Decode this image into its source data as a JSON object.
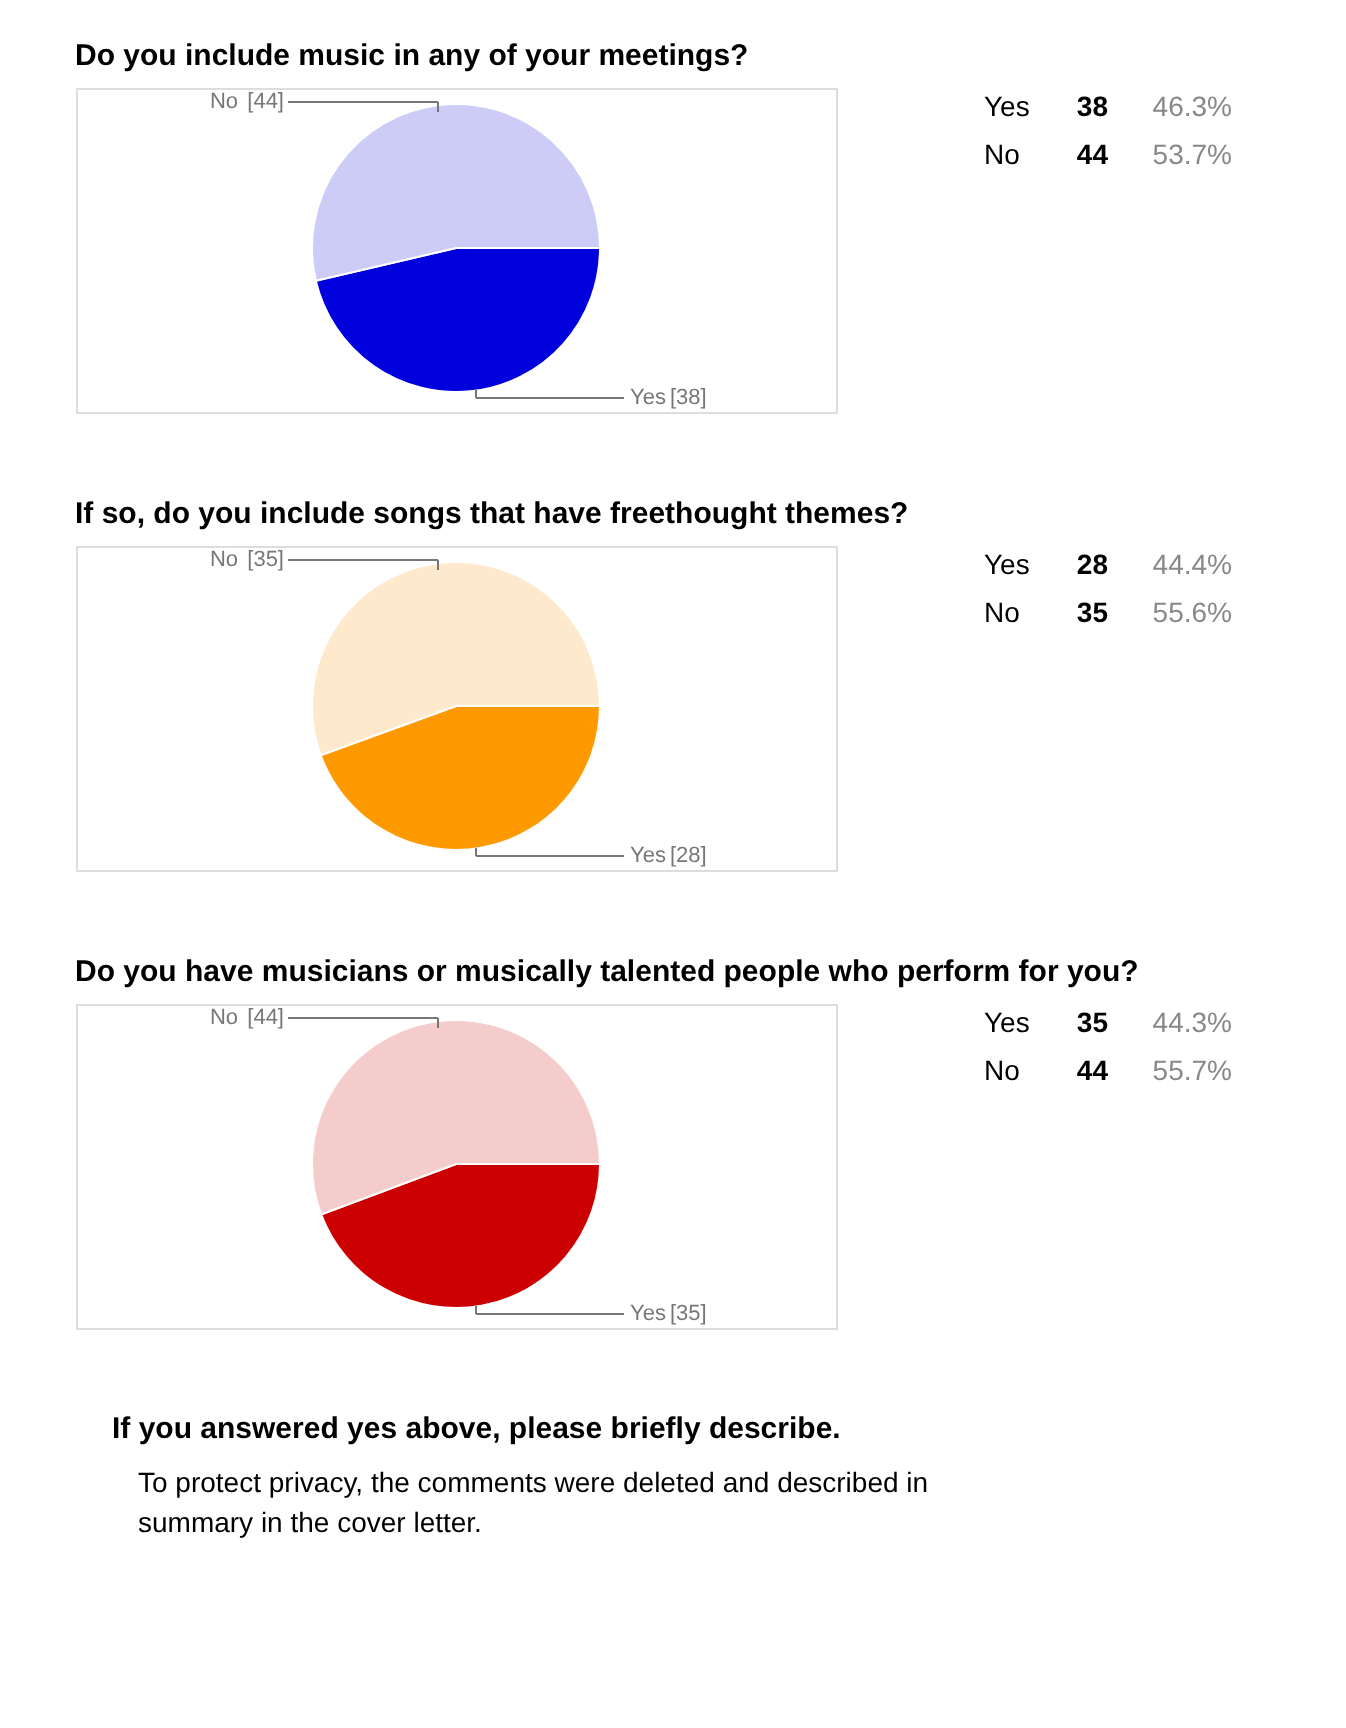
{
  "chart_data": [
    {
      "type": "pie",
      "title": "Do you include music in any of your meetings?",
      "categories": [
        "Yes",
        "No"
      ],
      "values": [
        38,
        44
      ],
      "value_labels": [
        "[38]",
        "[44]"
      ],
      "colors": [
        "#0000dd",
        "#ccccf7"
      ],
      "legend": false,
      "annotations": [
        "Yes",
        "38",
        "46.3%",
        "No",
        "44",
        "53.7%"
      ]
    },
    {
      "type": "pie",
      "title": "If so, do you include songs that have freethought themes?",
      "categories": [
        "Yes",
        "No"
      ],
      "values": [
        28,
        35
      ],
      "value_labels": [
        "[28]",
        "[35]"
      ],
      "colors": [
        "#ff9900",
        "#ffe9cc"
      ],
      "legend": false,
      "annotations": [
        "Yes",
        "28",
        "44.4%",
        "No",
        "35",
        "55.6%"
      ]
    },
    {
      "type": "pie",
      "title": "Do you have musicians or musically talented people who perform for you?",
      "categories": [
        "Yes",
        "No"
      ],
      "values": [
        35,
        44
      ],
      "value_labels": [
        "[35]",
        "[44]"
      ],
      "colors": [
        "#cc0000",
        "#f5cccc"
      ],
      "legend": false,
      "annotations": [
        "Yes",
        "35",
        "44.3%",
        "No",
        "44",
        "55.7%"
      ]
    },
    {
      "type": "other",
      "title": "If you answered yes above, please briefly describe.",
      "annotations": [
        "To protect privacy, the comments were deleted and described in summary in the cover letter."
      ]
    }
  ]
}
